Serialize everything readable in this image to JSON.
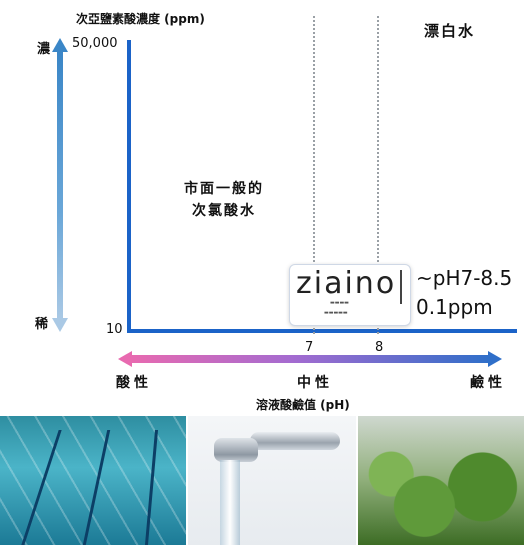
{
  "y_axis": {
    "title": "次亞鹽素酸濃度 (ppm)",
    "max_label": "50,000",
    "min_label": "10",
    "dense": "濃",
    "sparse": "稀"
  },
  "x_axis": {
    "title": "溶液酸鹼值 (pH)",
    "tick7": "7",
    "tick8": "8",
    "acid": "酸性",
    "neutral": "中性",
    "alkaline": "鹼性"
  },
  "regions": {
    "market_line1": "市面一般的",
    "market_line2": "次氯酸水",
    "bleach": "漂白水"
  },
  "product": {
    "logo": "ziaino",
    "info_line1": "~pH7-8.5",
    "info_line2": "0.1ppm"
  },
  "colors": {
    "axis": "#1b63c8",
    "acid": "#e86ab0",
    "alkaline": "#2f6fc9"
  },
  "photos": [
    "swimming-pool",
    "faucet-water",
    "vegetables"
  ]
}
